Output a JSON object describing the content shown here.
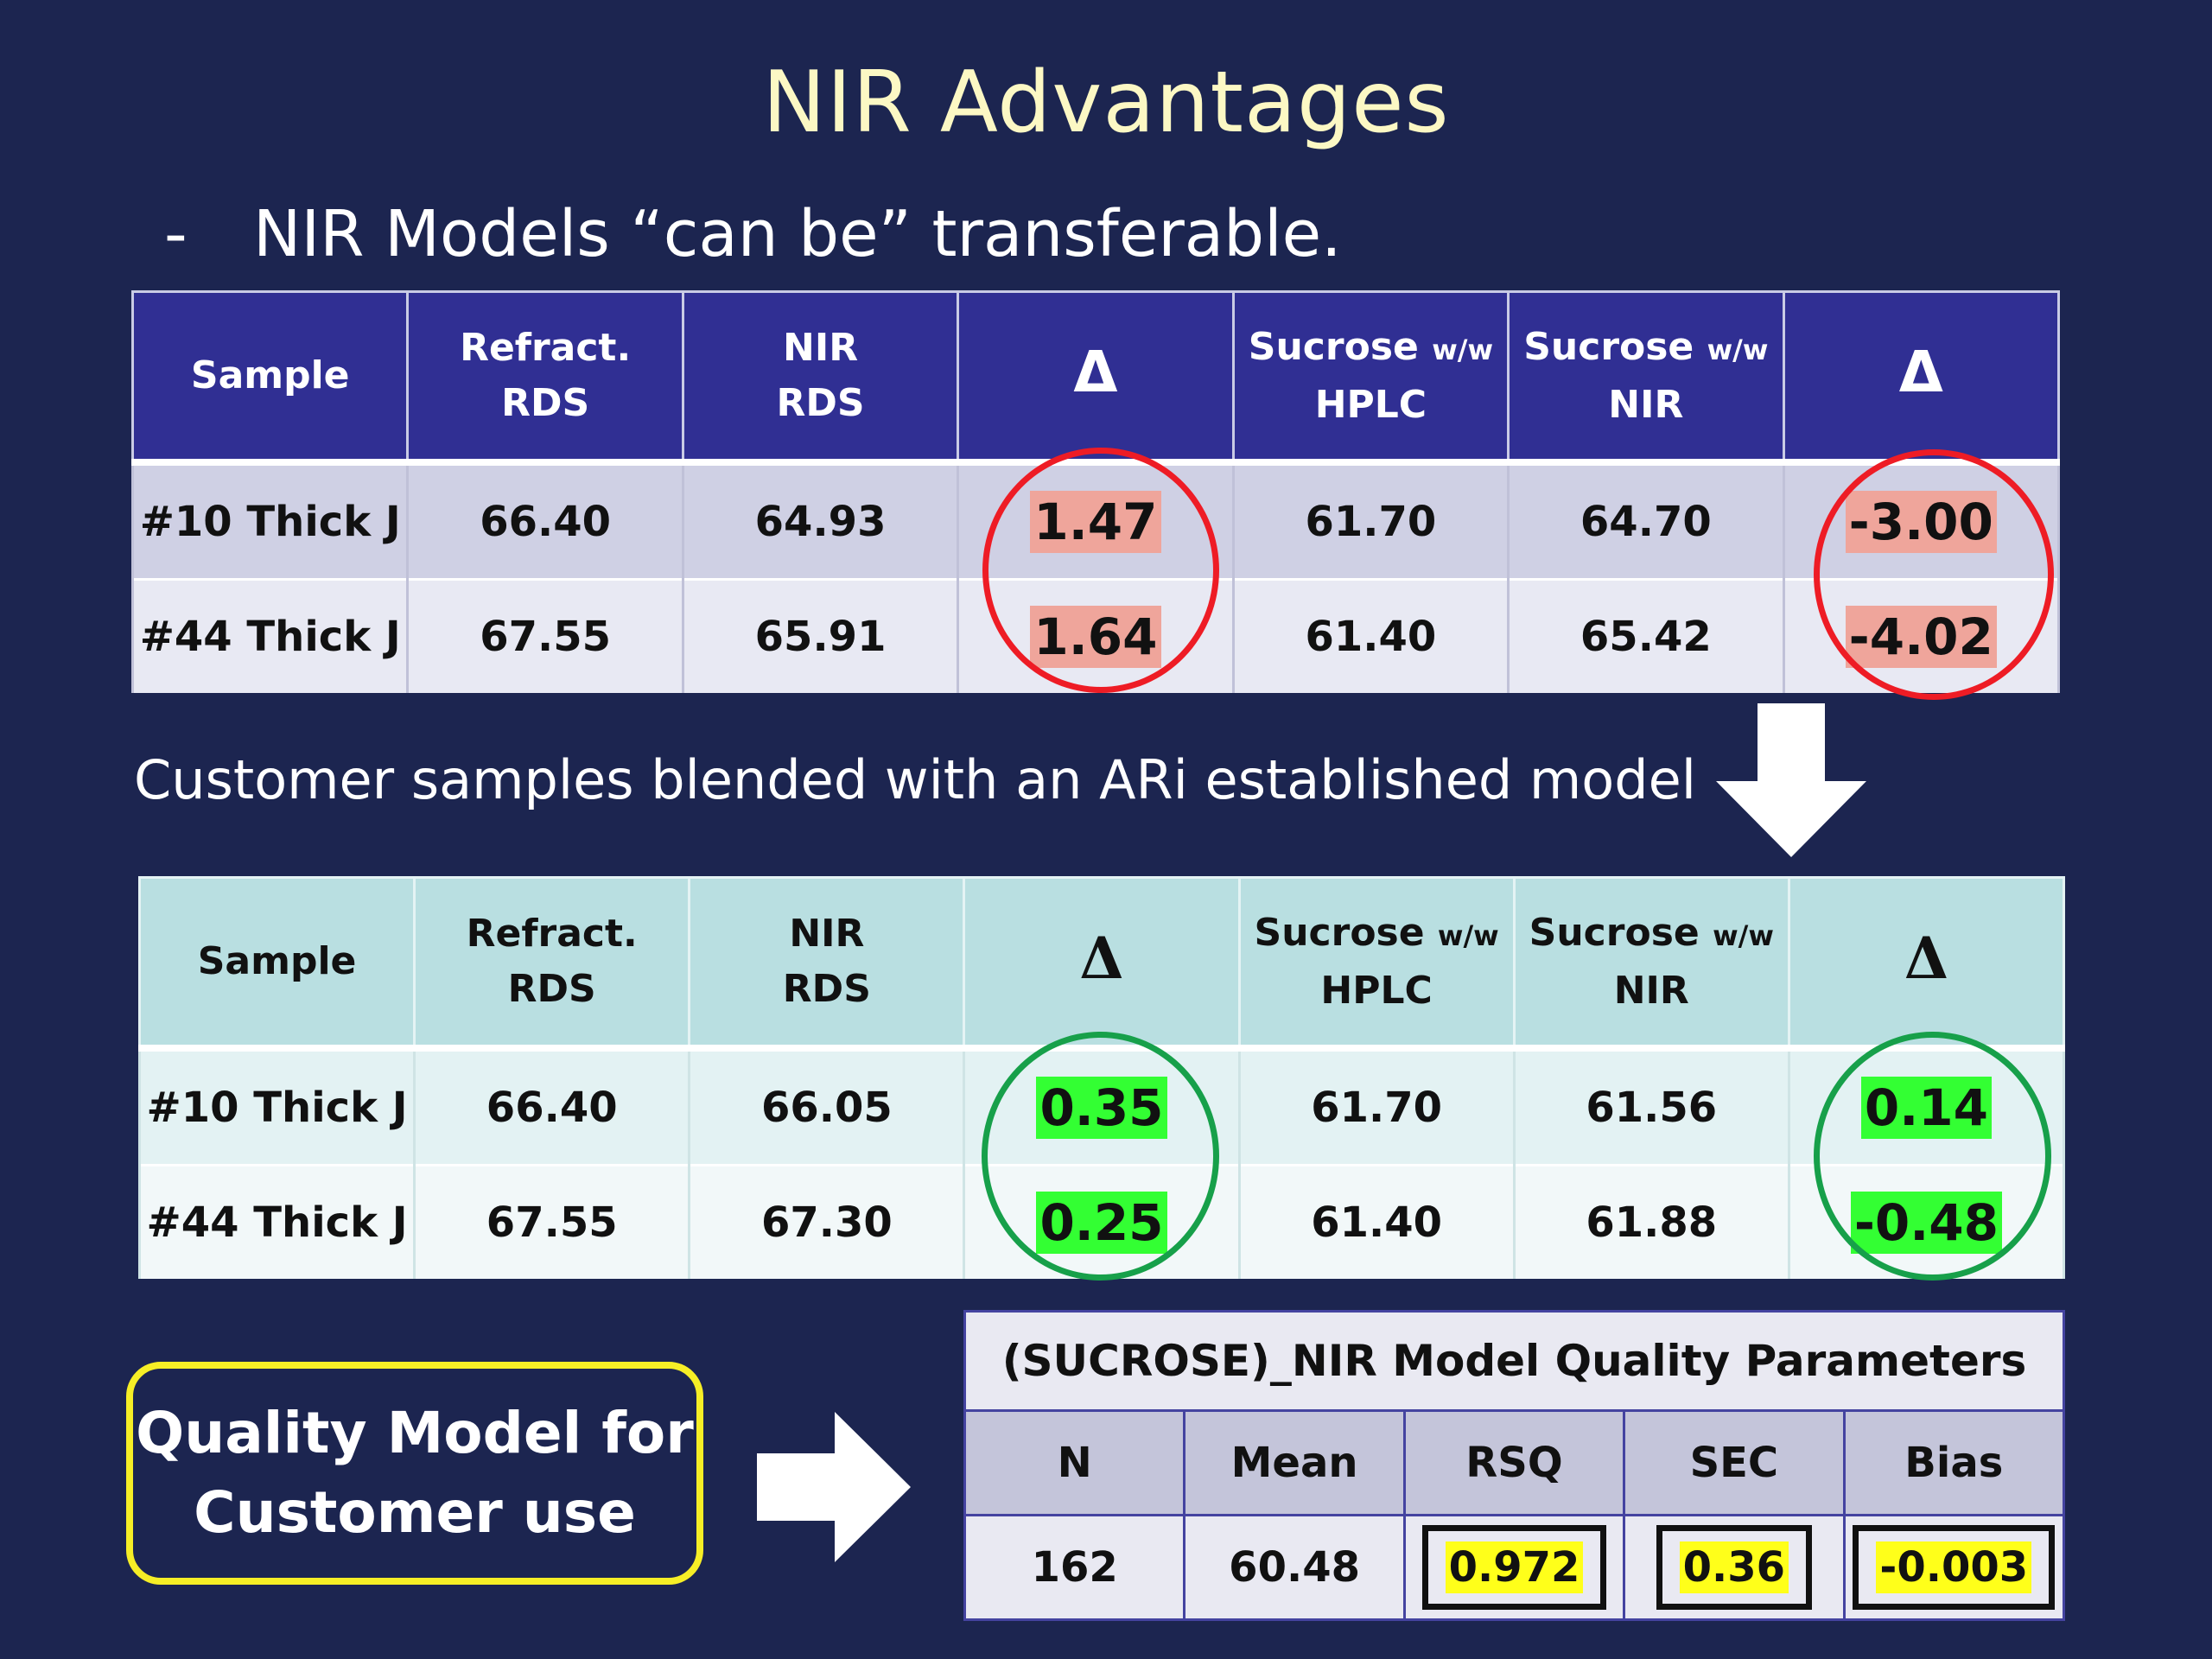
{
  "title": "NIR Advantages",
  "bullet": {
    "dash": "-",
    "text": "NIR Models “can be” transferable."
  },
  "subtitle": "Customer samples blended with an ARi established model",
  "table_headers": {
    "sample": "Sample",
    "refract_1": "Refract.",
    "refract_2": "RDS",
    "nir_1": "NIR",
    "nir_2": "RDS",
    "delta": "Δ",
    "sucrose": "Sucrose",
    "ww": "w/w",
    "hplc": "HPLC",
    "nir": "NIR"
  },
  "table1": {
    "rows": [
      {
        "sample": "#10 Thick J",
        "refract": "66.40",
        "nir_rds": "64.93",
        "delta1": "1.47",
        "hplc": "61.70",
        "nir": "64.70",
        "delta2": "-3.00"
      },
      {
        "sample": "#44 Thick J",
        "refract": "67.55",
        "nir_rds": "65.91",
        "delta1": "1.64",
        "hplc": "61.40",
        "nir": "65.42",
        "delta2": "-4.02"
      }
    ]
  },
  "table2": {
    "rows": [
      {
        "sample": "#10 Thick J",
        "refract": "66.40",
        "nir_rds": "66.05",
        "delta1": "0.35",
        "hplc": "61.70",
        "nir": "61.56",
        "delta2": "0.14"
      },
      {
        "sample": "#44 Thick J",
        "refract": "67.55",
        "nir_rds": "67.30",
        "delta1": "0.25",
        "hplc": "61.40",
        "nir": "61.88",
        "delta2": "-0.48"
      }
    ]
  },
  "quality_box": {
    "line1": "Quality Model for",
    "line2": "Customer use"
  },
  "model_params": {
    "title": "(SUCROSE)_NIR Model Quality Parameters",
    "headers": [
      "N",
      "Mean",
      "RSQ",
      "SEC",
      "Bias"
    ],
    "values": [
      "162",
      "60.48",
      "0.972",
      "0.36",
      "-0.003"
    ]
  },
  "colors": {
    "background": "#1c2550",
    "title": "#fcf8c4",
    "table1_header": "#302f93",
    "table2_header": "#b9dfe1",
    "red_highlight": "#efa59b",
    "green_highlight": "#33ff33",
    "yellow_highlight": "#ffff1a",
    "red_circle": "#ee1c25",
    "green_circle": "#17a04a",
    "quality_box_border": "#f6ee26"
  }
}
